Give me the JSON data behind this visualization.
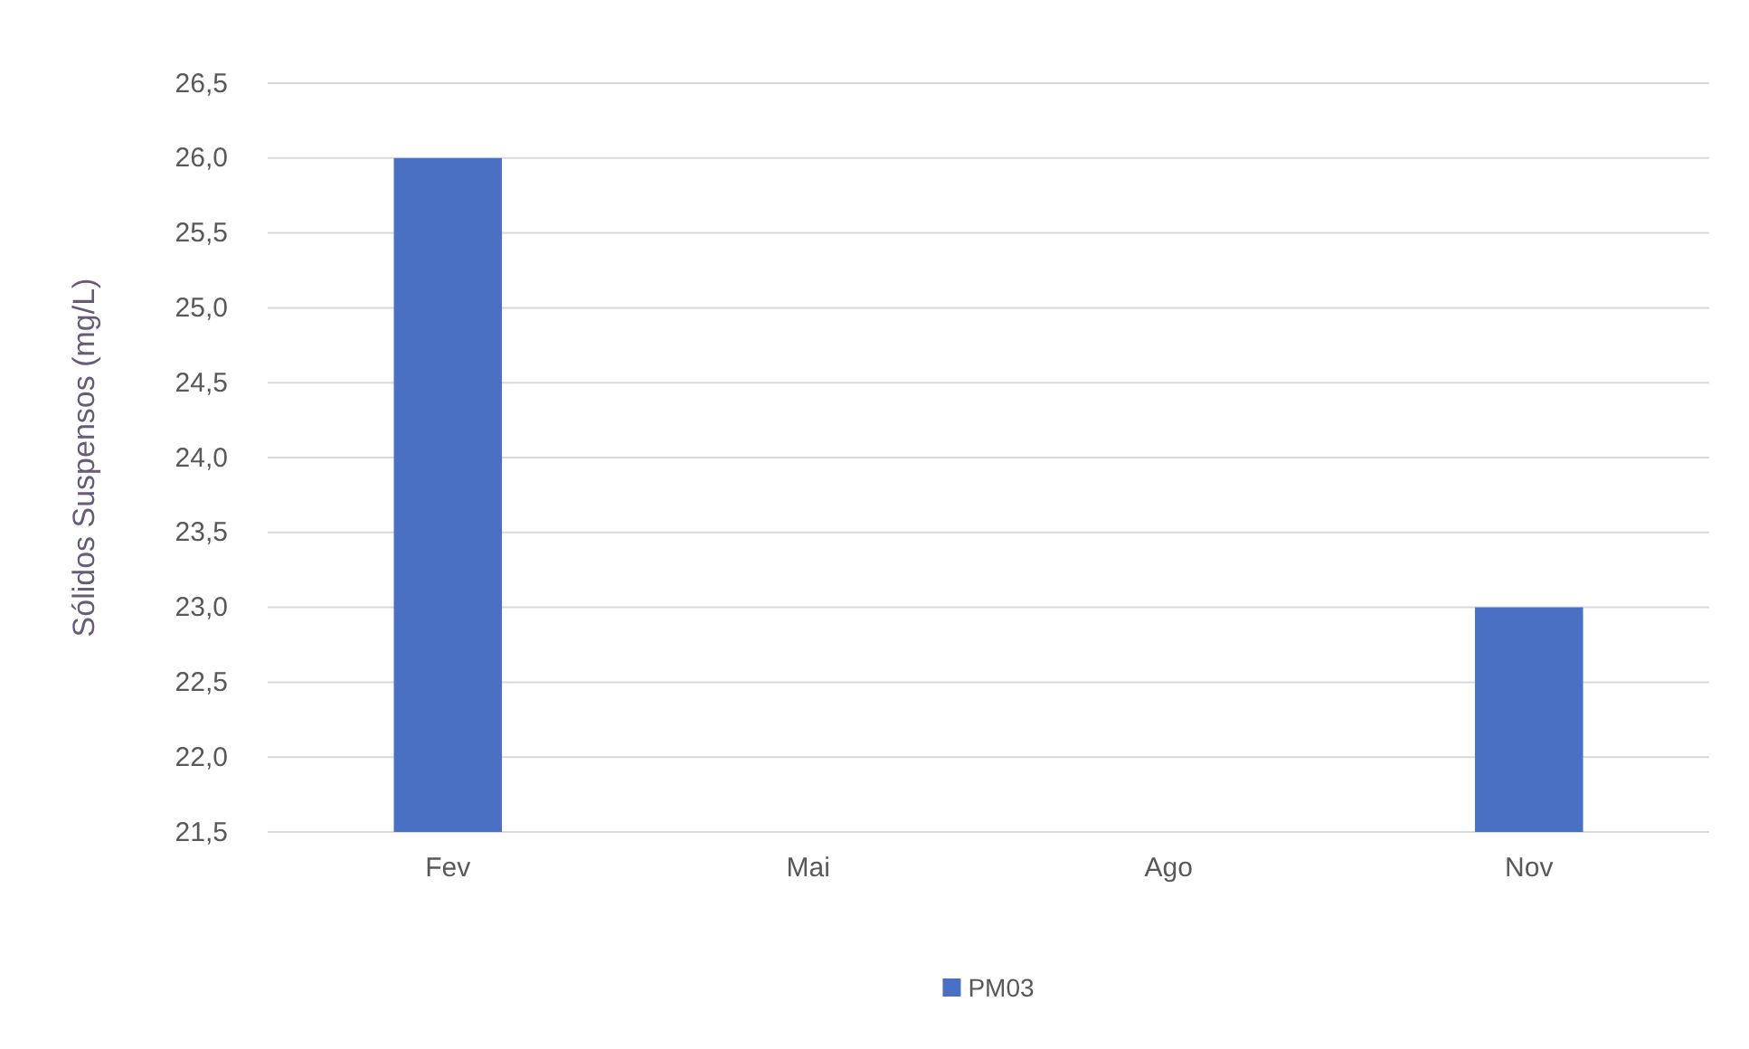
{
  "chart_data": {
    "type": "bar",
    "ylabel": "Sólidos Suspensos (mg/L)",
    "categories": [
      "Fev",
      "Mai",
      "Ago",
      "Nov"
    ],
    "series": [
      {
        "name": "PM03",
        "color": "#4a70c4",
        "values": [
          26.0,
          null,
          null,
          23.0
        ]
      }
    ],
    "ylim": [
      21.5,
      26.5
    ],
    "yticks": [
      {
        "value": 21.5,
        "label": "21,5"
      },
      {
        "value": 22.0,
        "label": "22,0"
      },
      {
        "value": 22.5,
        "label": "22,5"
      },
      {
        "value": 23.0,
        "label": "23,0"
      },
      {
        "value": 23.5,
        "label": "23,5"
      },
      {
        "value": 24.0,
        "label": "24,0"
      },
      {
        "value": 24.5,
        "label": "24,5"
      },
      {
        "value": 25.0,
        "label": "25,0"
      },
      {
        "value": 25.5,
        "label": "25,5"
      },
      {
        "value": 26.0,
        "label": "26,0"
      },
      {
        "value": 26.5,
        "label": "26,5"
      }
    ],
    "grid": "y",
    "legend": "bottom"
  }
}
